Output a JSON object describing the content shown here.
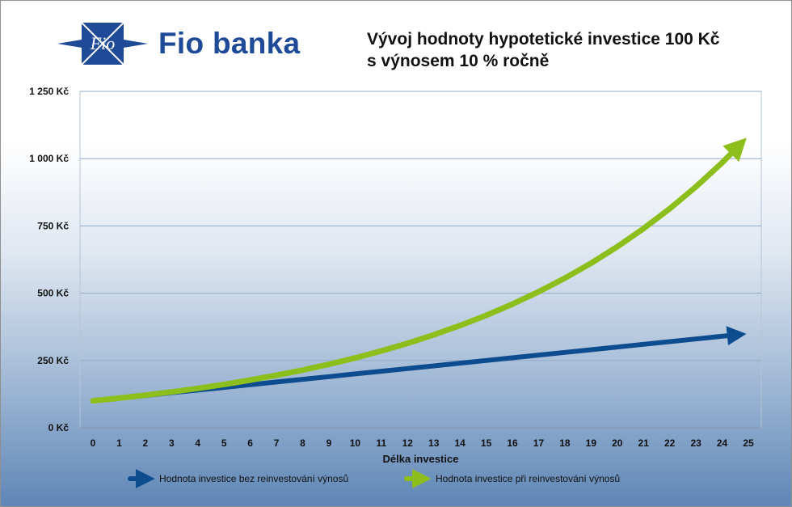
{
  "header": {
    "bank_name": "Fio banka",
    "logo_text": "Fio",
    "title_line1": "Vývoj hodnoty hypotetické investice 100 Kč",
    "title_line2": "s výnosem 10 % ročně"
  },
  "colors": {
    "brand": "#1e4a97",
    "series_simple": "#0d4c8f",
    "series_compound": "#8cbf1b",
    "gridline": "#93a9c7"
  },
  "chart_data": {
    "type": "line",
    "title": "Vývoj hodnoty hypotetické investice 100 Kč s výnosem 10 % ročně",
    "xlabel": "Délka investice",
    "ylabel": "",
    "x": [
      0,
      1,
      2,
      3,
      4,
      5,
      6,
      7,
      8,
      9,
      10,
      11,
      12,
      13,
      14,
      15,
      16,
      17,
      18,
      19,
      20,
      21,
      22,
      23,
      24,
      25
    ],
    "ylim": [
      0,
      1250
    ],
    "yticks": [
      0,
      250,
      500,
      750,
      1000,
      1250
    ],
    "ytick_labels": [
      "0 Kč",
      "250 Kč",
      "500 Kč",
      "750 Kč",
      "1 000 Kč",
      "1 250 Kč"
    ],
    "grid": true,
    "legend_position": "bottom",
    "series": [
      {
        "name": "Hodnota investice bez reinvestování výnosů",
        "color": "#0d4c8f",
        "values": [
          100,
          110,
          120,
          130,
          140,
          150,
          160,
          170,
          180,
          190,
          200,
          210,
          220,
          230,
          240,
          250,
          260,
          270,
          280,
          290,
          300,
          310,
          320,
          330,
          340,
          350
        ]
      },
      {
        "name": "Hodnota investice při reinvestování výnosů",
        "color": "#8cbf1b",
        "values": [
          100,
          110,
          121,
          133.1,
          146.41,
          161.05,
          177.16,
          194.87,
          214.36,
          235.79,
          259.37,
          285.31,
          313.84,
          345.23,
          379.75,
          417.72,
          459.5,
          505.45,
          555.99,
          611.59,
          672.75,
          740.02,
          814.03,
          895.43,
          984.97,
          1083.47
        ]
      }
    ]
  }
}
